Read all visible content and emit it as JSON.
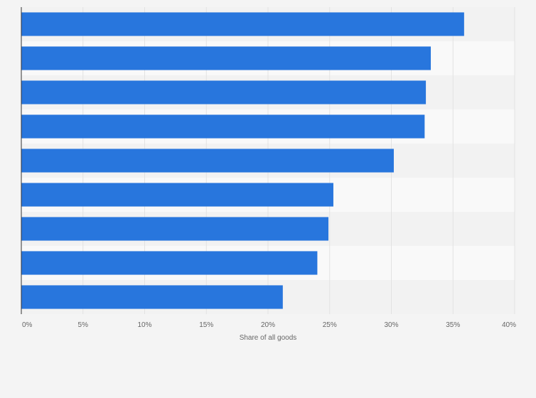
{
  "chart_data": {
    "type": "bar",
    "orientation": "horizontal",
    "categories": [
      "",
      "",
      "",
      "",
      "",
      "",
      "",
      "",
      ""
    ],
    "values": [
      35.9,
      33.2,
      32.8,
      32.7,
      30.2,
      25.3,
      24.9,
      24.0,
      21.2
    ],
    "title": "",
    "xlabel": "Share of all goods",
    "ylabel": "",
    "xlim": [
      0,
      40
    ],
    "ticks": [
      0,
      5,
      10,
      15,
      20,
      25,
      30,
      35,
      40
    ],
    "tick_labels": [
      "0%",
      "5%",
      "10%",
      "15%",
      "20%",
      "25%",
      "30%",
      "35%",
      "40%"
    ],
    "grid": true,
    "bar_color": "#2876dd"
  }
}
